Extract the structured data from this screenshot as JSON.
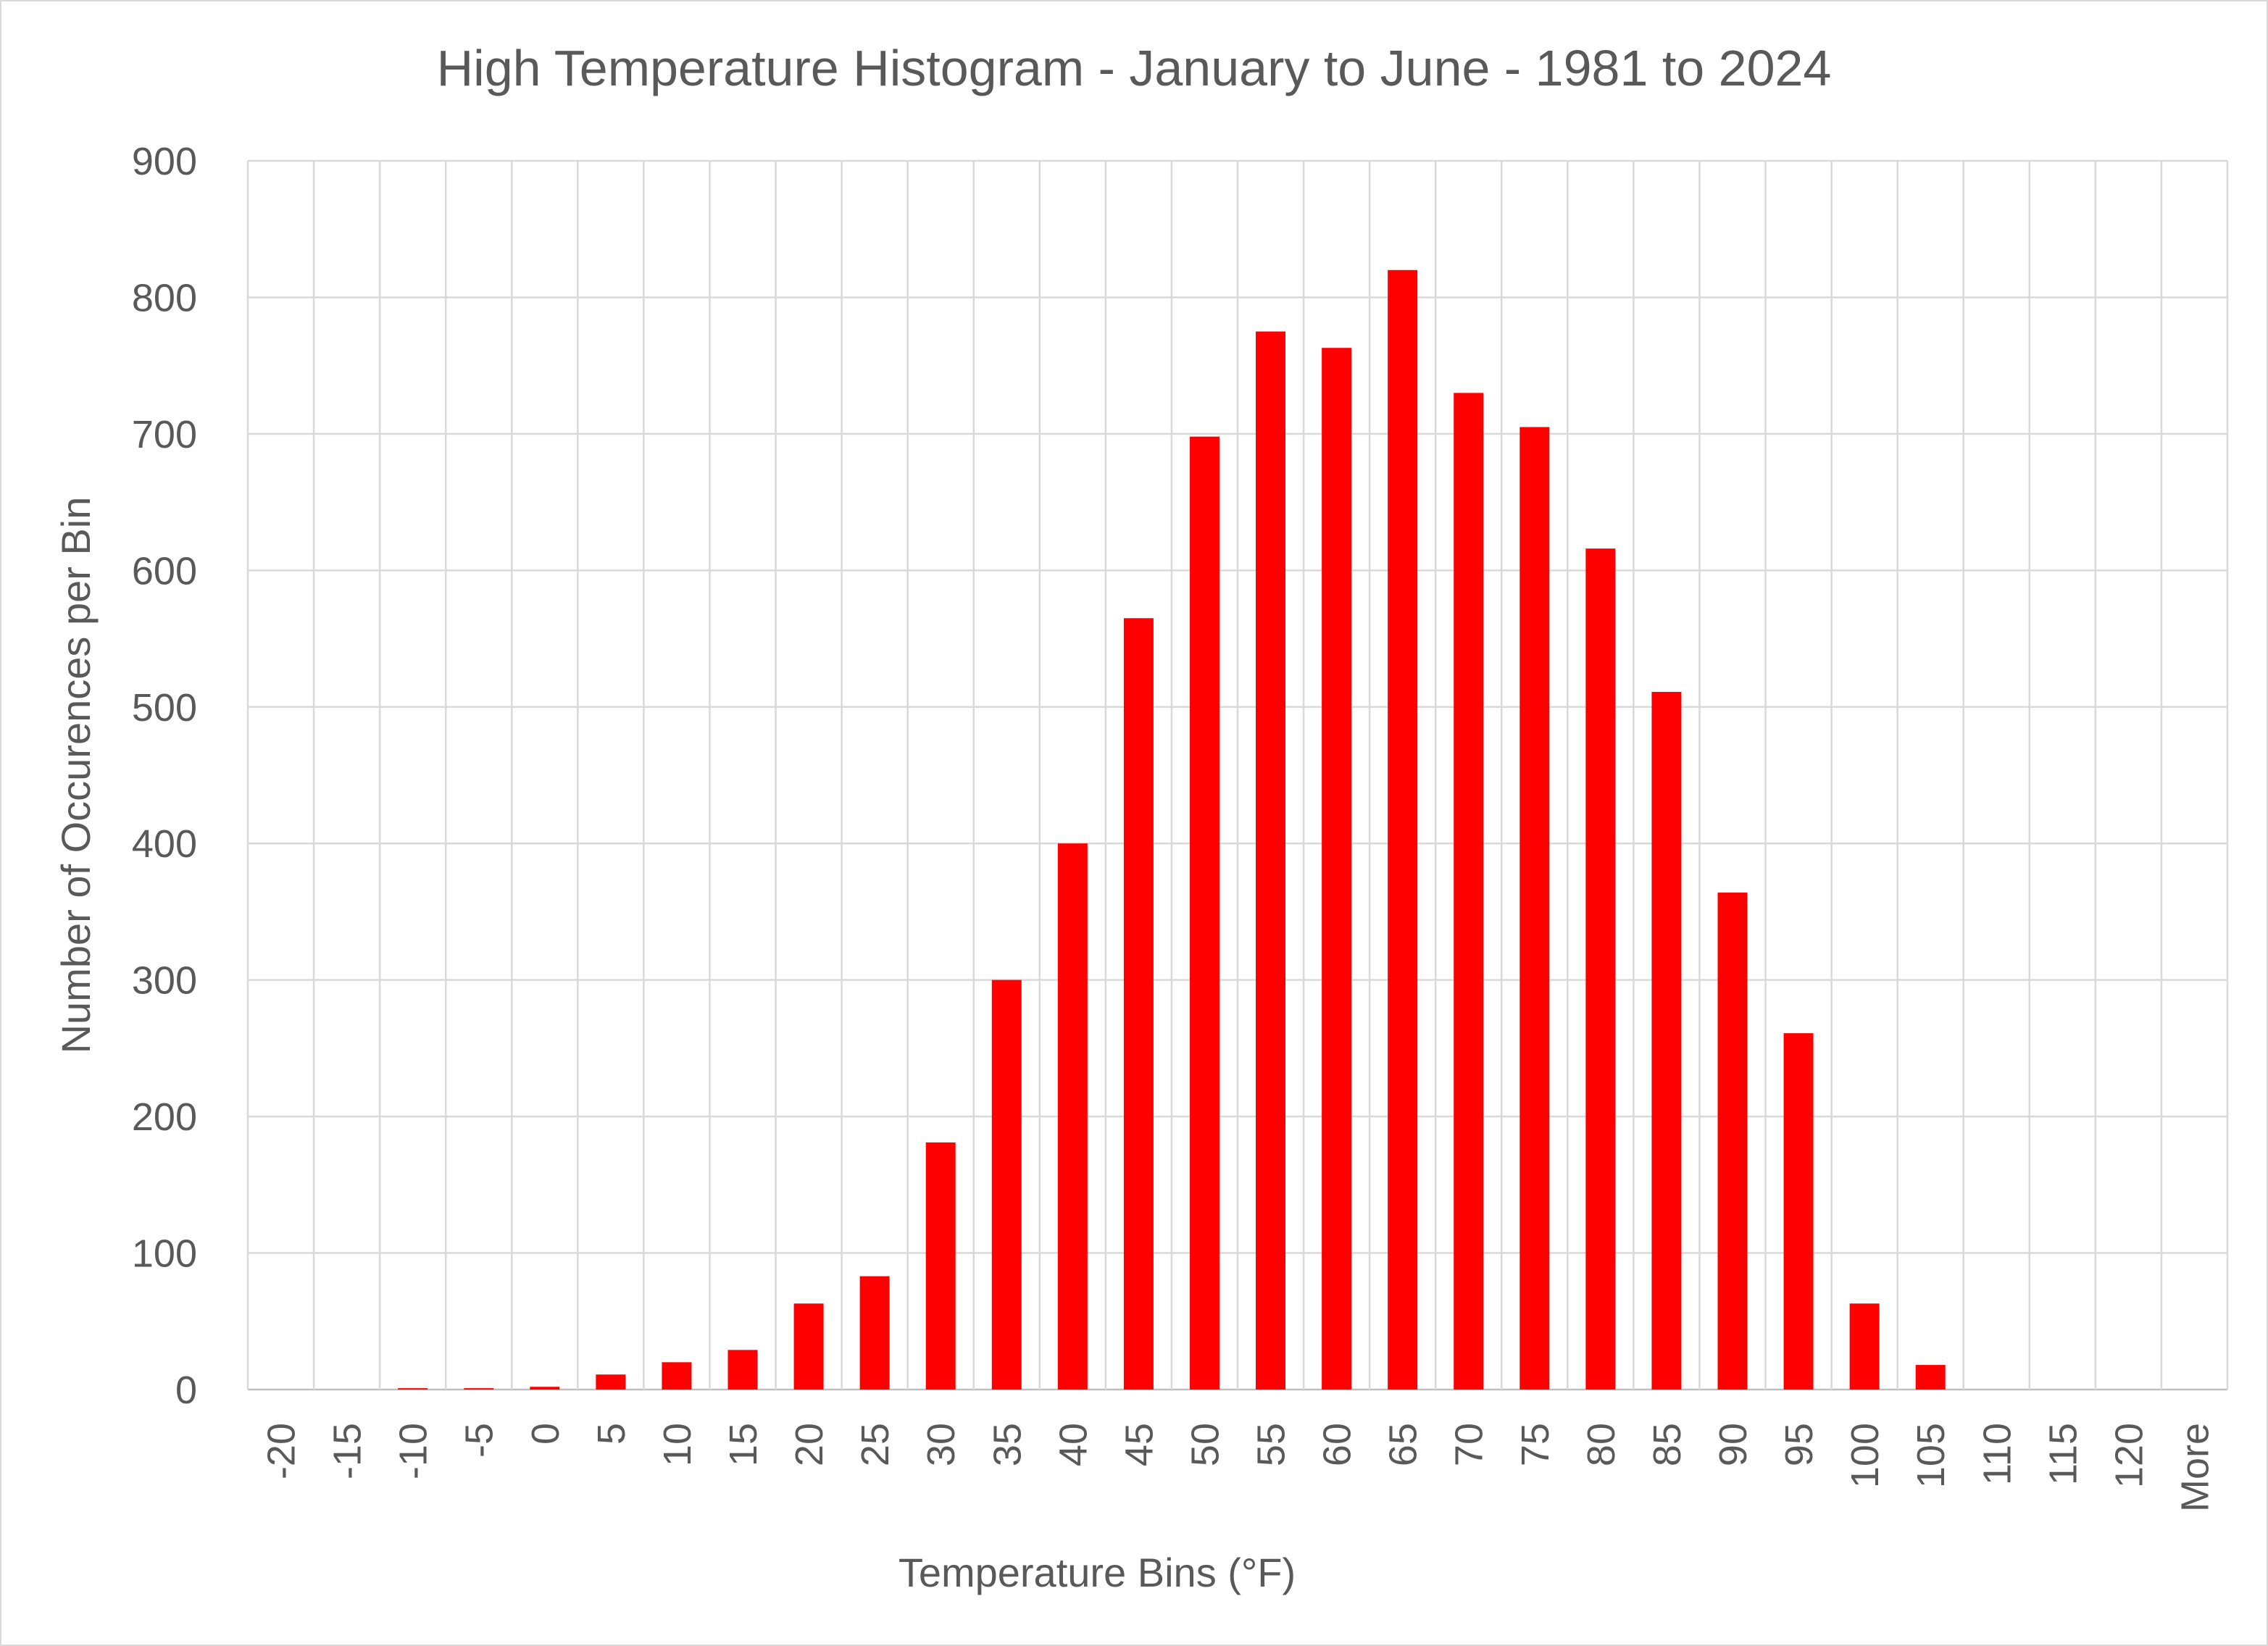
{
  "chart_data": {
    "type": "bar",
    "title": "High Temperature Histogram - January to June - 1981 to 2024",
    "xlabel": "Temperature Bins (°F)",
    "ylabel": "Number of Occurences per Bin",
    "categories": [
      "-20",
      "-15",
      "-10",
      "-5",
      "0",
      "5",
      "10",
      "15",
      "20",
      "25",
      "30",
      "35",
      "40",
      "45",
      "50",
      "55",
      "60",
      "65",
      "70",
      "75",
      "80",
      "85",
      "90",
      "95",
      "100",
      "105",
      "110",
      "115",
      "120",
      "More"
    ],
    "values": [
      0,
      0,
      1,
      1,
      2,
      11,
      20,
      29,
      63,
      83,
      181,
      300,
      400,
      565,
      698,
      775,
      763,
      820,
      730,
      705,
      616,
      511,
      364,
      261,
      63,
      18,
      0,
      0,
      0,
      0
    ],
    "ylim": [
      0,
      900
    ],
    "yticks": [
      0,
      100,
      200,
      300,
      400,
      500,
      600,
      700,
      800,
      900
    ],
    "grid": true,
    "legend": "none",
    "bar_color": "#ff0000"
  }
}
